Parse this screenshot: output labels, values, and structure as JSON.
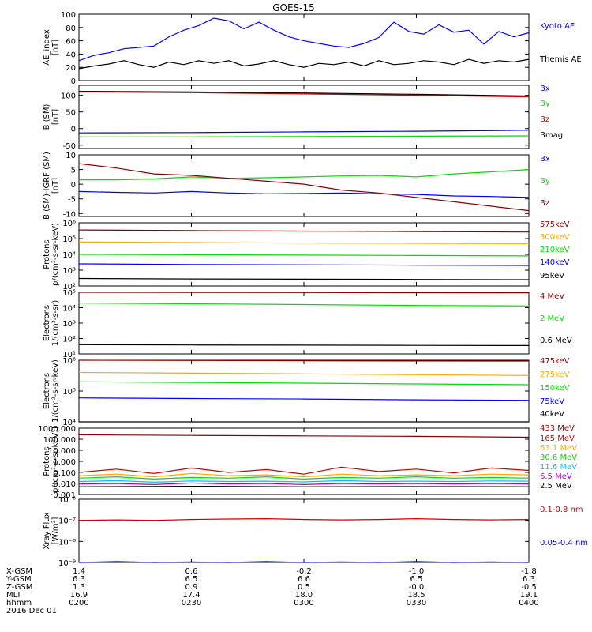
{
  "title": "GOES-15",
  "colors": {
    "black": "#000000",
    "blue": "#0000ff",
    "green": "#00dd00",
    "red": "#cc0000",
    "darkred": "#8b0000",
    "orange": "#ffa500",
    "cyan": "#00bfff",
    "magenta": "#b000b0"
  },
  "chart_data": [
    {
      "type": "line",
      "panel": "ae",
      "ylabel": "AE_index\n[nT]",
      "ylim": [
        0,
        100
      ],
      "yticks": [
        0,
        20,
        40,
        60,
        80,
        100
      ],
      "xlim": [
        0,
        120
      ],
      "series": [
        {
          "name": "Kyoto AE",
          "color": "blue",
          "x": [
            0,
            4,
            8,
            12,
            16,
            20,
            24,
            28,
            32,
            36,
            40,
            44,
            48,
            52,
            56,
            60,
            64,
            68,
            72,
            76,
            80,
            84,
            88,
            92,
            96,
            100,
            104,
            108,
            112,
            116,
            120
          ],
          "y": [
            30,
            38,
            42,
            48,
            50,
            52,
            66,
            76,
            83,
            94,
            90,
            78,
            88,
            76,
            66,
            60,
            56,
            52,
            50,
            56,
            65,
            88,
            74,
            70,
            84,
            73,
            76,
            55,
            74,
            66,
            72
          ]
        },
        {
          "name": "Themis AE",
          "color": "black",
          "x": [
            0,
            4,
            8,
            12,
            16,
            20,
            24,
            28,
            32,
            36,
            40,
            44,
            48,
            52,
            56,
            60,
            64,
            68,
            72,
            76,
            80,
            84,
            88,
            92,
            96,
            100,
            104,
            108,
            112,
            116,
            120
          ],
          "y": [
            18,
            22,
            25,
            30,
            24,
            20,
            28,
            24,
            30,
            26,
            30,
            22,
            25,
            30,
            24,
            20,
            26,
            24,
            28,
            22,
            30,
            24,
            26,
            30,
            28,
            24,
            32,
            26,
            30,
            28,
            32
          ]
        }
      ]
    },
    {
      "type": "line",
      "panel": "b_sm",
      "ylabel": "B (SM)\n[nT]",
      "ylim": [
        -60,
        130
      ],
      "yticks": [
        -50,
        0,
        50,
        100
      ],
      "xlim": [
        0,
        120
      ],
      "series": [
        {
          "name": "Bx",
          "color": "blue",
          "x": [
            0,
            30,
            60,
            90,
            120
          ],
          "y": [
            -13,
            -12,
            -10,
            -8,
            -5
          ]
        },
        {
          "name": "By",
          "color": "green",
          "x": [
            0,
            30,
            60,
            90,
            120
          ],
          "y": [
            -25,
            -25,
            -24,
            -23,
            -22
          ]
        },
        {
          "name": "Bz",
          "color": "darkred",
          "x": [
            0,
            30,
            60,
            90,
            120
          ],
          "y": [
            110,
            108,
            104,
            100,
            95
          ]
        },
        {
          "name": "Bmag",
          "color": "black",
          "x": [
            0,
            30,
            60,
            90,
            120
          ],
          "y": [
            112,
            110,
            107,
            103,
            98
          ]
        }
      ]
    },
    {
      "type": "line",
      "panel": "b_igrf",
      "ylabel": "B (SM)-IGRF (SM)\n[nT]",
      "ylim": [
        -11,
        10
      ],
      "yticks": [
        -10,
        -5,
        0,
        5,
        10
      ],
      "xlim": [
        0,
        120
      ],
      "series": [
        {
          "name": "Bx",
          "color": "blue",
          "x": [
            0,
            10,
            20,
            30,
            40,
            50,
            60,
            70,
            80,
            90,
            100,
            110,
            120
          ],
          "y": [
            -2.5,
            -2.8,
            -3,
            -2.5,
            -3,
            -3.3,
            -3.2,
            -3,
            -3.3,
            -3.5,
            -4,
            -4.2,
            -4.5
          ]
        },
        {
          "name": "By",
          "color": "green",
          "x": [
            0,
            10,
            20,
            30,
            40,
            50,
            60,
            70,
            80,
            90,
            100,
            110,
            120
          ],
          "y": [
            1.5,
            1.5,
            1.8,
            2.5,
            2,
            2.2,
            2.5,
            2.8,
            3,
            2.5,
            3.5,
            4.2,
            5
          ]
        },
        {
          "name": "Bz",
          "color": "red",
          "x": [
            0,
            10,
            20,
            30,
            40,
            50,
            60,
            70,
            80,
            90,
            100,
            110,
            120
          ],
          "y": [
            7,
            5.5,
            3.5,
            3,
            2,
            1,
            0,
            -2,
            -3,
            -4.5,
            -6,
            -7.5,
            -9
          ]
        }
      ]
    },
    {
      "type": "line",
      "panel": "protons_low",
      "yscale": "log",
      "ylabel": "Protons\np/(cm²-s-sr-keV)",
      "ylim": [
        100,
        1000000
      ],
      "yticks": [
        100,
        1000,
        10000,
        100000,
        1000000
      ],
      "ytick_labels": [
        "10²",
        "10³",
        "10⁴",
        "10⁵",
        "10⁶"
      ],
      "xlim": [
        0,
        120
      ],
      "series": [
        {
          "name": "575keV",
          "color": "black",
          "x": [
            0,
            30,
            60,
            90,
            120
          ],
          "y": [
            350000,
            320000,
            300000,
            280000,
            260000
          ]
        },
        {
          "name": "300keV",
          "color": "blue",
          "x": [
            0,
            30,
            60,
            90,
            120
          ],
          "y": [
            60000,
            56000,
            52000,
            50000,
            48000
          ]
        },
        {
          "name": "210keV",
          "color": "green",
          "x": [
            0,
            30,
            60,
            90,
            120
          ],
          "y": [
            10000,
            9500,
            9000,
            8500,
            8000
          ]
        },
        {
          "name": "140keV",
          "color": "orange",
          "x": [
            0,
            30,
            60,
            90,
            120
          ],
          "y": [
            2500,
            2300,
            2200,
            2100,
            2000
          ]
        },
        {
          "name": "95keV",
          "color": "darkred",
          "x": [
            0,
            30,
            60,
            90,
            120
          ],
          "y": [
            300,
            280,
            270,
            260,
            250
          ]
        }
      ]
    },
    {
      "type": "line",
      "panel": "electrons_mev",
      "yscale": "log",
      "ylabel": "Electrons\n1/(cm²-s-sr)",
      "ylim": [
        10,
        100000
      ],
      "yticks": [
        10,
        100,
        1000,
        10000,
        100000
      ],
      "ytick_labels": [
        "10¹",
        "10²",
        "10³",
        "10⁴",
        "10⁵"
      ],
      "xlim": [
        0,
        120
      ],
      "series": [
        {
          "name": "4 MeV",
          "color": "black",
          "x": [
            0,
            30,
            60,
            90,
            120
          ],
          "y": [
            100000,
            98000,
            96000,
            94000,
            92000
          ]
        },
        {
          "name": "2 MeV",
          "color": "green",
          "x": [
            0,
            30,
            60,
            90,
            120
          ],
          "y": [
            20000,
            18000,
            16000,
            14000,
            13000
          ]
        },
        {
          "name": "0.6 MeV",
          "color": "darkred",
          "x": [
            0,
            30,
            60,
            90,
            120
          ],
          "y": [
            40,
            38,
            37,
            36,
            35
          ]
        }
      ]
    },
    {
      "type": "line",
      "panel": "electrons_kev",
      "yscale": "log",
      "ylabel": "Electrons\n1/(cm²-s-sr-keV)",
      "ylim": [
        10000,
        1000000
      ],
      "yticks": [
        10000,
        100000,
        1000000
      ],
      "ytick_labels": [
        "10⁴",
        "10⁵",
        "10⁶"
      ],
      "xlim": [
        0,
        120
      ],
      "series": [
        {
          "name": "475keV",
          "color": "black",
          "x": [
            0,
            30,
            60,
            90,
            120
          ],
          "y": [
            1000000,
            980000,
            960000,
            950000,
            940000
          ]
        },
        {
          "name": "275keV",
          "color": "green",
          "x": [
            0,
            30,
            60,
            90,
            120
          ],
          "y": [
            400000,
            380000,
            360000,
            340000,
            320000
          ]
        },
        {
          "name": "150keV",
          "color": "orange",
          "x": [
            0,
            30,
            60,
            90,
            120
          ],
          "y": [
            200000,
            190000,
            180000,
            170000,
            160000
          ]
        },
        {
          "name": "75keV",
          "color": "darkred",
          "x": [
            0,
            30,
            60,
            90,
            120
          ],
          "y": [
            60000,
            57000,
            55000,
            52000,
            50000
          ]
        },
        {
          "name": "40keV",
          "color": "blue",
          "x": [
            0,
            30,
            60,
            90,
            120
          ],
          "y": [
            10000,
            10000,
            10000,
            10000,
            10000
          ]
        }
      ]
    },
    {
      "type": "line",
      "panel": "protons_mev",
      "yscale": "log",
      "ylabel": "Protons\n[p/(cm²-s-sr-keV)]",
      "ylim": [
        0.001,
        1000
      ],
      "yticks": [
        0.001,
        0.01,
        0.1,
        1,
        10,
        100,
        1000
      ],
      "ytick_labels": [
        "0.001",
        "0.010",
        "0.100",
        "1.000",
        "10.000",
        "100.000",
        "1000.000"
      ],
      "xlim": [
        0,
        120
      ],
      "series": [
        {
          "name": "433 MeV",
          "color": "black",
          "x": [
            0,
            30,
            60,
            90,
            120
          ],
          "y": [
            250,
            220,
            200,
            180,
            150
          ]
        },
        {
          "name": "165 MeV",
          "color": "blue",
          "x": [
            0,
            10,
            20,
            30,
            40,
            50,
            60,
            70,
            80,
            90,
            100,
            110,
            120
          ],
          "y": [
            0.1,
            0.2,
            0.08,
            0.25,
            0.1,
            0.18,
            0.07,
            0.3,
            0.12,
            0.2,
            0.09,
            0.25,
            0.15
          ]
        },
        {
          "name": "63.1 MeV",
          "color": "cyan",
          "x": [
            0,
            10,
            20,
            30,
            40,
            50,
            60,
            70,
            80,
            90,
            100,
            110,
            120
          ],
          "y": [
            0.05,
            0.07,
            0.04,
            0.08,
            0.05,
            0.06,
            0.04,
            0.07,
            0.05,
            0.06,
            0.05,
            0.07,
            0.06
          ]
        },
        {
          "name": "30.6 MeV",
          "color": "green",
          "x": [
            0,
            10,
            20,
            30,
            40,
            50,
            60,
            70,
            80,
            90,
            100,
            110,
            120
          ],
          "y": [
            0.03,
            0.04,
            0.025,
            0.035,
            0.03,
            0.04,
            0.025,
            0.035,
            0.03,
            0.04,
            0.03,
            0.035,
            0.03
          ]
        },
        {
          "name": "11.6 MeV",
          "color": "orange",
          "x": [
            0,
            10,
            20,
            30,
            40,
            50,
            60,
            70,
            80,
            90,
            100,
            110,
            120
          ],
          "y": [
            0.015,
            0.018,
            0.013,
            0.017,
            0.015,
            0.016,
            0.014,
            0.018,
            0.015,
            0.016,
            0.015,
            0.017,
            0.016
          ]
        },
        {
          "name": "6.5 MeV",
          "color": "magenta",
          "x": [
            0,
            10,
            20,
            30,
            40,
            50,
            60,
            70,
            80,
            90,
            100,
            110,
            120
          ],
          "y": [
            0.009,
            0.01,
            0.008,
            0.011,
            0.009,
            0.01,
            0.008,
            0.01,
            0.009,
            0.01,
            0.009,
            0.01,
            0.009
          ]
        },
        {
          "name": "2.5 MeV",
          "color": "darkred",
          "x": [
            0,
            30,
            60,
            90,
            120
          ],
          "y": [
            0.005,
            0.0055,
            0.005,
            0.0052,
            0.005
          ]
        }
      ]
    },
    {
      "type": "line",
      "panel": "xray",
      "yscale": "log",
      "ylabel": "Xray Flux\n[W/m²]",
      "ylim": [
        1e-09,
        1e-06
      ],
      "yticks": [
        1e-09,
        1e-08,
        1e-07,
        1e-06
      ],
      "ytick_labels": [
        "10⁻⁹",
        "10⁻⁸",
        "10⁻⁷",
        "10⁻⁶"
      ],
      "xlim": [
        0,
        120
      ],
      "series": [
        {
          "name": "0.1-0.8 nm",
          "color": "red",
          "x": [
            0,
            10,
            20,
            30,
            40,
            50,
            60,
            70,
            80,
            90,
            100,
            110,
            120
          ],
          "y": [
            1e-07,
            1.05e-07,
            1e-07,
            1.1e-07,
            1.15e-07,
            1.2e-07,
            1.1e-07,
            1.05e-07,
            1.1e-07,
            1.2e-07,
            1.1e-07,
            1.05e-07,
            1.1e-07
          ]
        },
        {
          "name": "0.05-0.4 nm",
          "color": "blue",
          "x": [
            0,
            10,
            20,
            30,
            40,
            50,
            60,
            70,
            80,
            90,
            100,
            110,
            120
          ],
          "y": [
            1e-09,
            1.1e-09,
            1e-09,
            1.05e-09,
            1e-09,
            1.1e-09,
            1e-09,
            1.05e-09,
            1e-09,
            1.1e-09,
            1e-09,
            1.05e-09,
            1e-09
          ]
        }
      ]
    }
  ],
  "x_axis": {
    "tick_positions": [
      0,
      30,
      60,
      90,
      120
    ],
    "rows": [
      {
        "label": "X-GSM",
        "values": [
          "1.4",
          "0.6",
          "-0.2",
          "-1.0",
          "-1.8"
        ]
      },
      {
        "label": "Y-GSM",
        "values": [
          "6.3",
          "6.5",
          "6.6",
          "6.5",
          "6.3"
        ]
      },
      {
        "label": "Z-GSM",
        "values": [
          "1.3",
          "0.9",
          "0.5",
          "-0.0",
          "-0.5"
        ]
      },
      {
        "label": "MLT",
        "values": [
          "16.9",
          "17.4",
          "18.0",
          "18.5",
          "19.1"
        ]
      },
      {
        "label": "hhmm",
        "values": [
          "0200",
          "0230",
          "0300",
          "0330",
          "0400"
        ]
      }
    ],
    "date": "2016 Dec 01"
  }
}
